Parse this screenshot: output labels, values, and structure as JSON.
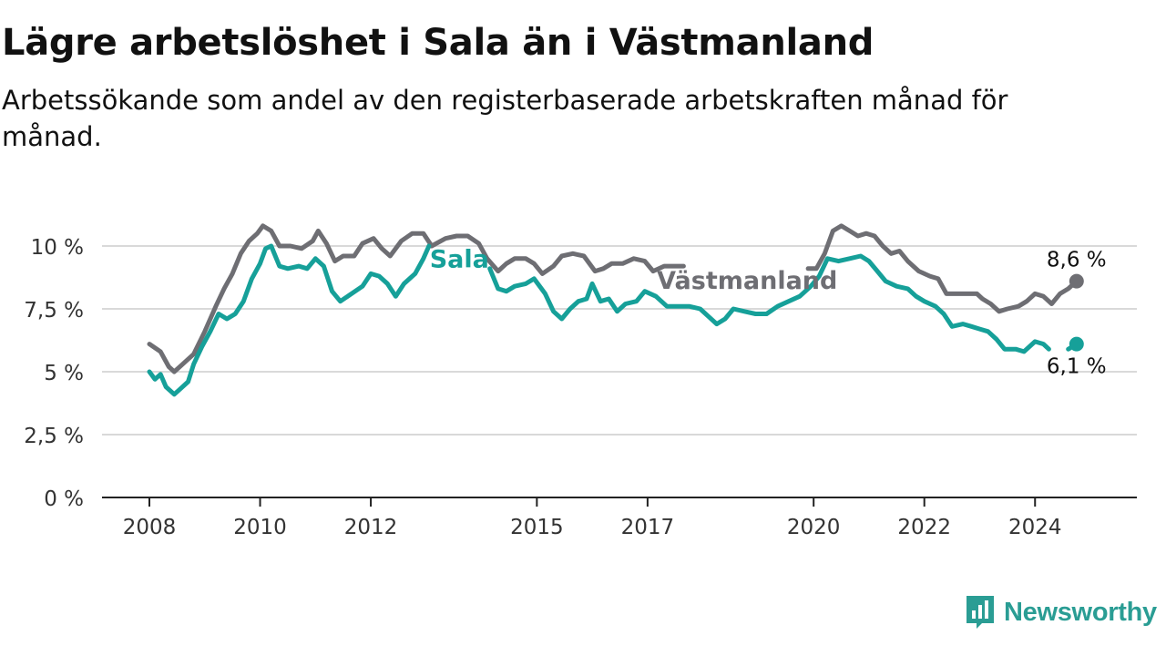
{
  "header": {
    "title": "Lägre arbetslöshet i Sala än i Västmanland",
    "subtitle": "Arbetssökande som andel av den registerbaserade arbetskraften månad för månad."
  },
  "brand": {
    "name": "Newsworthy",
    "icon": "newsworthy-logo-icon",
    "color": "#2a9d94"
  },
  "chart_data": {
    "type": "line",
    "title": "Lägre arbetslöshet i Sala än i Västmanland",
    "subtitle": "Arbetssökande som andel av den registerbaserade arbetskraften månad för månad.",
    "xlabel": "",
    "ylabel": "",
    "xlim": [
      2008,
      2025
    ],
    "ylim": [
      0,
      11
    ],
    "x_ticks": [
      {
        "value": 2008,
        "label": "2008"
      },
      {
        "value": 2010,
        "label": "2010"
      },
      {
        "value": 2012,
        "label": "2012"
      },
      {
        "value": 2015,
        "label": "2015"
      },
      {
        "value": 2017,
        "label": "2017"
      },
      {
        "value": 2020,
        "label": "2020"
      },
      {
        "value": 2022,
        "label": "2022"
      },
      {
        "value": 2024,
        "label": "2024"
      }
    ],
    "y_ticks": [
      {
        "value": 0,
        "label": "0 %"
      },
      {
        "value": 2.5,
        "label": "2,5 %"
      },
      {
        "value": 5,
        "label": "5 %"
      },
      {
        "value": 7.5,
        "label": "7,5 %"
      },
      {
        "value": 10,
        "label": "10 %"
      }
    ],
    "grid": "horizontal",
    "series": [
      {
        "name": "Västmanland",
        "color": "#6e6e73",
        "end_label": "8,6 %",
        "points": [
          [
            2008.0,
            6.1
          ],
          [
            2008.2,
            5.8
          ],
          [
            2008.35,
            5.2
          ],
          [
            2008.45,
            5.0
          ],
          [
            2008.6,
            5.3
          ],
          [
            2008.8,
            5.7
          ],
          [
            2009.0,
            6.6
          ],
          [
            2009.2,
            7.6
          ],
          [
            2009.35,
            8.3
          ],
          [
            2009.5,
            8.9
          ],
          [
            2009.65,
            9.7
          ],
          [
            2009.8,
            10.2
          ],
          [
            2009.95,
            10.5
          ],
          [
            2010.05,
            10.8
          ],
          [
            2010.2,
            10.6
          ],
          [
            2010.35,
            10.0
          ],
          [
            2010.55,
            10.0
          ],
          [
            2010.75,
            9.9
          ],
          [
            2010.95,
            10.2
          ],
          [
            2011.05,
            10.6
          ],
          [
            2011.2,
            10.1
          ],
          [
            2011.35,
            9.4
          ],
          [
            2011.5,
            9.6
          ],
          [
            2011.7,
            9.6
          ],
          [
            2011.85,
            10.1
          ],
          [
            2012.05,
            10.3
          ],
          [
            2012.2,
            9.9
          ],
          [
            2012.35,
            9.6
          ],
          [
            2012.55,
            10.2
          ],
          [
            2012.75,
            10.5
          ],
          [
            2012.95,
            10.5
          ],
          [
            2013.1,
            10.0
          ],
          [
            2013.35,
            10.3
          ],
          [
            2013.55,
            10.4
          ],
          [
            2013.75,
            10.4
          ],
          [
            2013.95,
            10.1
          ],
          [
            2014.1,
            9.5
          ],
          [
            2014.3,
            9.0
          ],
          [
            2014.45,
            9.3
          ],
          [
            2014.6,
            9.5
          ],
          [
            2014.8,
            9.5
          ],
          [
            2014.95,
            9.3
          ],
          [
            2015.1,
            8.9
          ],
          [
            2015.3,
            9.2
          ],
          [
            2015.45,
            9.6
          ],
          [
            2015.65,
            9.7
          ],
          [
            2015.85,
            9.6
          ],
          [
            2016.05,
            9.0
          ],
          [
            2016.2,
            9.1
          ],
          [
            2016.35,
            9.3
          ],
          [
            2016.55,
            9.3
          ],
          [
            2016.75,
            9.5
          ],
          [
            2016.95,
            9.4
          ],
          [
            2017.1,
            9.0
          ],
          [
            2017.3,
            9.2
          ],
          [
            2017.5,
            9.2
          ],
          [
            2017.65,
            9.2
          ],
          [
            2017.85,
            null
          ],
          [
            2018.1,
            null
          ],
          [
            2019.85,
            null
          ],
          [
            2019.9,
            9.1
          ],
          [
            2020.05,
            9.1
          ],
          [
            2020.2,
            9.7
          ],
          [
            2020.35,
            10.6
          ],
          [
            2020.5,
            10.8
          ],
          [
            2020.65,
            10.6
          ],
          [
            2020.8,
            10.4
          ],
          [
            2020.95,
            10.5
          ],
          [
            2021.1,
            10.4
          ],
          [
            2021.25,
            10.0
          ],
          [
            2021.4,
            9.7
          ],
          [
            2021.55,
            9.8
          ],
          [
            2021.7,
            9.4
          ],
          [
            2021.9,
            9.0
          ],
          [
            2022.1,
            8.8
          ],
          [
            2022.25,
            8.7
          ],
          [
            2022.4,
            8.1
          ],
          [
            2022.6,
            8.1
          ],
          [
            2022.8,
            8.1
          ],
          [
            2022.95,
            8.1
          ],
          [
            2023.05,
            7.9
          ],
          [
            2023.2,
            7.7
          ],
          [
            2023.35,
            7.4
          ],
          [
            2023.5,
            7.5
          ],
          [
            2023.7,
            7.6
          ],
          [
            2023.85,
            7.8
          ],
          [
            2024.0,
            8.1
          ],
          [
            2024.15,
            8.0
          ],
          [
            2024.3,
            7.7
          ],
          [
            2024.45,
            8.1
          ],
          [
            2024.6,
            8.3
          ],
          [
            2024.75,
            8.6
          ]
        ]
      },
      {
        "name": "Sala",
        "color": "#16a099",
        "end_label": "6,1 %",
        "points": [
          [
            2008.0,
            5.0
          ],
          [
            2008.1,
            4.7
          ],
          [
            2008.2,
            4.9
          ],
          [
            2008.3,
            4.4
          ],
          [
            2008.45,
            4.1
          ],
          [
            2008.55,
            4.3
          ],
          [
            2008.7,
            4.6
          ],
          [
            2008.8,
            5.3
          ],
          [
            2008.95,
            6.0
          ],
          [
            2009.1,
            6.6
          ],
          [
            2009.25,
            7.3
          ],
          [
            2009.4,
            7.1
          ],
          [
            2009.55,
            7.3
          ],
          [
            2009.7,
            7.8
          ],
          [
            2009.85,
            8.7
          ],
          [
            2010.0,
            9.3
          ],
          [
            2010.1,
            9.9
          ],
          [
            2010.2,
            10.0
          ],
          [
            2010.35,
            9.2
          ],
          [
            2010.5,
            9.1
          ],
          [
            2010.7,
            9.2
          ],
          [
            2010.85,
            9.1
          ],
          [
            2011.0,
            9.5
          ],
          [
            2011.15,
            9.2
          ],
          [
            2011.3,
            8.2
          ],
          [
            2011.45,
            7.8
          ],
          [
            2011.65,
            8.1
          ],
          [
            2011.85,
            8.4
          ],
          [
            2012.0,
            8.9
          ],
          [
            2012.15,
            8.8
          ],
          [
            2012.3,
            8.5
          ],
          [
            2012.45,
            8.0
          ],
          [
            2012.6,
            8.5
          ],
          [
            2012.8,
            8.9
          ],
          [
            2012.95,
            9.5
          ],
          [
            2013.05,
            10.0
          ],
          [
            2013.15,
            null
          ],
          [
            2014.0,
            null
          ],
          [
            2014.15,
            9.1
          ],
          [
            2014.3,
            8.3
          ],
          [
            2014.45,
            8.2
          ],
          [
            2014.6,
            8.4
          ],
          [
            2014.8,
            8.5
          ],
          [
            2014.95,
            8.7
          ],
          [
            2015.15,
            8.1
          ],
          [
            2015.3,
            7.4
          ],
          [
            2015.45,
            7.1
          ],
          [
            2015.6,
            7.5
          ],
          [
            2015.75,
            7.8
          ],
          [
            2015.9,
            7.9
          ],
          [
            2016.0,
            8.5
          ],
          [
            2016.15,
            7.8
          ],
          [
            2016.3,
            7.9
          ],
          [
            2016.45,
            7.4
          ],
          [
            2016.6,
            7.7
          ],
          [
            2016.8,
            7.8
          ],
          [
            2016.95,
            8.2
          ],
          [
            2017.15,
            8.0
          ],
          [
            2017.35,
            7.6
          ],
          [
            2017.55,
            7.6
          ],
          [
            2017.75,
            7.6
          ],
          [
            2017.95,
            7.5
          ],
          [
            2018.1,
            7.2
          ],
          [
            2018.25,
            6.9
          ],
          [
            2018.4,
            7.1
          ],
          [
            2018.55,
            7.5
          ],
          [
            2018.75,
            7.4
          ],
          [
            2018.95,
            7.3
          ],
          [
            2019.15,
            7.3
          ],
          [
            2019.35,
            7.6
          ],
          [
            2019.55,
            7.8
          ],
          [
            2019.75,
            8.0
          ],
          [
            2019.95,
            8.4
          ],
          [
            2020.1,
            8.8
          ],
          [
            2020.25,
            9.5
          ],
          [
            2020.45,
            9.4
          ],
          [
            2020.65,
            9.5
          ],
          [
            2020.85,
            9.6
          ],
          [
            2021.0,
            9.4
          ],
          [
            2021.15,
            9.0
          ],
          [
            2021.3,
            8.6
          ],
          [
            2021.5,
            8.4
          ],
          [
            2021.7,
            8.3
          ],
          [
            2021.85,
            8.0
          ],
          [
            2022.0,
            7.8
          ],
          [
            2022.2,
            7.6
          ],
          [
            2022.35,
            7.3
          ],
          [
            2022.5,
            6.8
          ],
          [
            2022.7,
            6.9
          ],
          [
            2022.85,
            6.8
          ],
          [
            2023.0,
            6.7
          ],
          [
            2023.15,
            6.6
          ],
          [
            2023.3,
            6.3
          ],
          [
            2023.45,
            5.9
          ],
          [
            2023.65,
            5.9
          ],
          [
            2023.8,
            5.8
          ],
          [
            2024.0,
            6.2
          ],
          [
            2024.15,
            6.1
          ],
          [
            2024.25,
            5.9
          ],
          [
            2024.35,
            null
          ],
          [
            2024.5,
            null
          ],
          [
            2024.6,
            5.9
          ],
          [
            2024.75,
            6.1
          ]
        ]
      }
    ],
    "series_labels": [
      {
        "series": "Sala",
        "text": "Sala",
        "x": 2013.6,
        "y": 9.15
      },
      {
        "series": "Västmanland",
        "text": "Västmanland",
        "x": 2018.8,
        "y": 8.3
      }
    ]
  }
}
